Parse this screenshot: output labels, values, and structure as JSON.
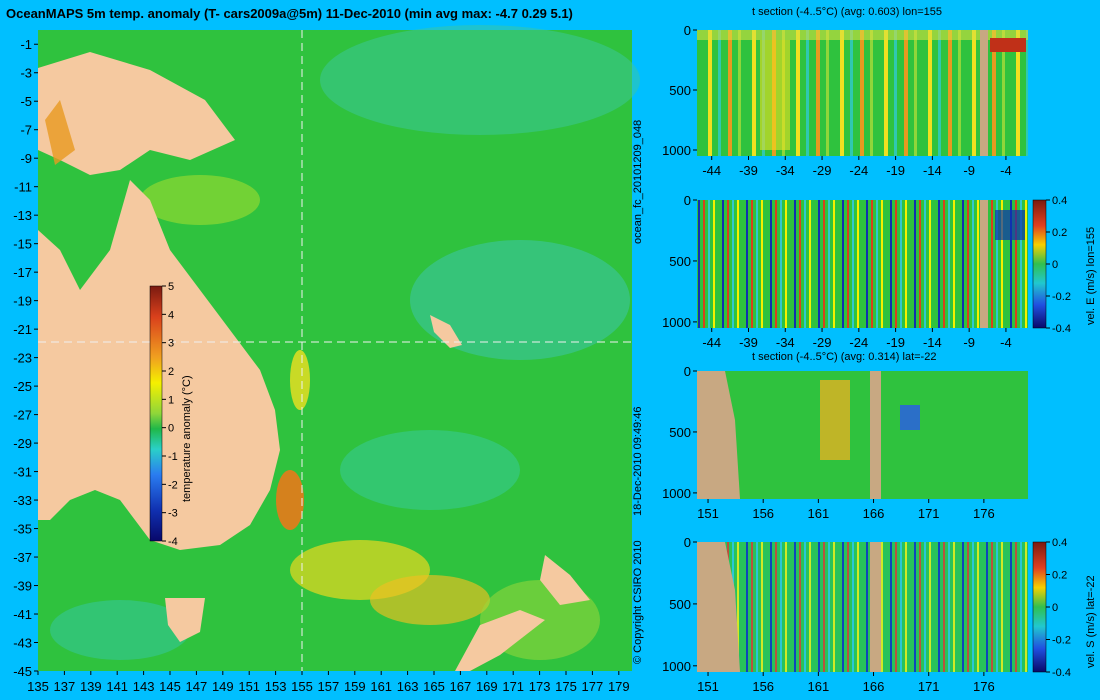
{
  "colors": {
    "background": "#00BFFF",
    "land": "#F5C9A0",
    "seabed": "#C8A882",
    "ocean_base": "#2FC23E"
  },
  "main_title": "OceanMAPS 5m temp. anomaly (T- cars2009a@5m) 11-Dec-2010 (min avg max: -4.7 0.29 5.1)",
  "side_labels": {
    "run": "ocean_fc_20101209_048",
    "timestamp": "18-Dec-2010 09:49:46",
    "copyright": "© Copyright CSIRO 2010"
  },
  "chart_data": [
    {
      "type": "heatmap",
      "title": "OceanMAPS 5m temp. anomaly (T- cars2009a@5m) 11-Dec-2010 (min avg max: -4.7 0.29 5.1)",
      "x_ticks": [
        "135",
        "137",
        "139",
        "141",
        "143",
        "145",
        "147",
        "149",
        "151",
        "153",
        "155",
        "157",
        "159",
        "161",
        "163",
        "165",
        "167",
        "169",
        "171",
        "173",
        "175",
        "177",
        "179"
      ],
      "y_ticks": [
        "-1",
        "-3",
        "-5",
        "-7",
        "-9",
        "-11",
        "-13",
        "-15",
        "-17",
        "-19",
        "-21",
        "-23",
        "-25",
        "-27",
        "-29",
        "-31",
        "-33",
        "-35",
        "-37",
        "-39",
        "-41",
        "-43",
        "-45"
      ],
      "xlim": [
        135,
        180
      ],
      "ylim": [
        -45,
        0
      ],
      "colorbar": {
        "label": "temperature anomaly (°C)",
        "ticks": [
          "5",
          "4",
          "3",
          "2",
          "1",
          "0",
          "-1",
          "-2",
          "-3",
          "-4"
        ],
        "range": [
          -4,
          5
        ]
      },
      "section_lines": {
        "lon": 155,
        "lat": -22
      },
      "stats": {
        "min": -4.7,
        "avg": 0.29,
        "max": 5.1
      }
    },
    {
      "type": "heatmap",
      "title": "t section (-4..5°C) (avg: 0.603) lon=155",
      "x_ticks": [
        "-44",
        "-39",
        "-34",
        "-29",
        "-24",
        "-19",
        "-14",
        "-9",
        "-4"
      ],
      "y_ticks": [
        "0",
        "500",
        "1000"
      ],
      "xlim": [
        -46,
        -1
      ],
      "ylim": [
        1050,
        0
      ],
      "avg": 0.603
    },
    {
      "type": "heatmap",
      "title": "",
      "x_ticks": [
        "-44",
        "-39",
        "-34",
        "-29",
        "-24",
        "-19",
        "-14",
        "-9",
        "-4"
      ],
      "y_ticks": [
        "0",
        "500",
        "1000"
      ],
      "xlim": [
        -46,
        -1
      ],
      "ylim": [
        1050,
        0
      ],
      "colorbar": {
        "label": "vel. E (m/s) lon=155",
        "ticks": [
          "0.4",
          "0.2",
          "0",
          "-0.2",
          "-0.4"
        ],
        "range": [
          -0.4,
          0.4
        ]
      }
    },
    {
      "type": "heatmap",
      "title": "t section (-4..5°C) (avg: 0.314) lat=-22",
      "x_ticks": [
        "151",
        "156",
        "161",
        "166",
        "171",
        "176"
      ],
      "y_ticks": [
        "0",
        "500",
        "1000"
      ],
      "xlim": [
        150,
        180
      ],
      "ylim": [
        1050,
        0
      ],
      "avg": 0.314
    },
    {
      "type": "heatmap",
      "title": "",
      "x_ticks": [
        "151",
        "156",
        "161",
        "166",
        "171",
        "176"
      ],
      "y_ticks": [
        "0",
        "500",
        "1000"
      ],
      "xlim": [
        150,
        180
      ],
      "ylim": [
        1050,
        0
      ],
      "colorbar": {
        "label": "vel. S (m/s) lat=-22",
        "ticks": [
          "0.4",
          "0.2",
          "0",
          "-0.2",
          "-0.4"
        ],
        "range": [
          -0.4,
          0.4
        ]
      }
    }
  ]
}
